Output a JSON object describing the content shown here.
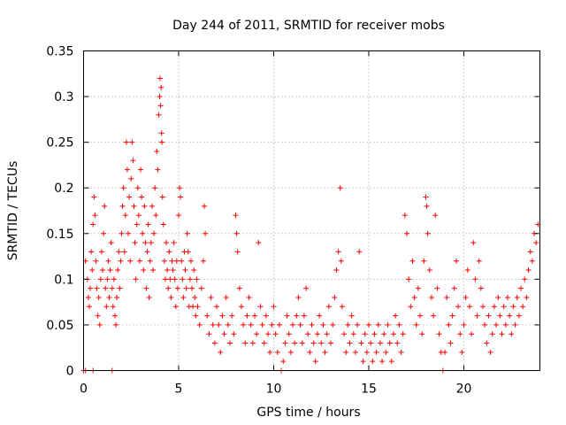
{
  "chart_data": {
    "type": "scatter",
    "title": "Day 244 of 2011, SRMTID for receiver mobs",
    "xlabel": "GPS time / hours",
    "ylabel": "SRMTID / TECUs",
    "xlim": [
      0,
      24
    ],
    "ylim": [
      0,
      0.35
    ],
    "xticks": [
      0,
      5,
      10,
      15,
      20
    ],
    "yticks": [
      0,
      0.05,
      0.1,
      0.15,
      0.2,
      0.25,
      0.3,
      0.35
    ],
    "ytick_labels": [
      "0",
      "0.05",
      "0.1",
      "0.15",
      "0.2",
      "0.25",
      "0.3",
      "0.35"
    ],
    "grid": true,
    "marker": "+",
    "marker_color": "#ff0000",
    "series": [
      {
        "name": "mobs",
        "points": [
          [
            0.0,
            0.0
          ],
          [
            0.1,
            0.0
          ],
          [
            0.5,
            0.0
          ],
          [
            1.5,
            0.0
          ],
          [
            0.1,
            0.12
          ],
          [
            0.2,
            0.1
          ],
          [
            0.25,
            0.08
          ],
          [
            0.3,
            0.07
          ],
          [
            0.35,
            0.09
          ],
          [
            0.4,
            0.13
          ],
          [
            0.45,
            0.11
          ],
          [
            0.5,
            0.16
          ],
          [
            0.55,
            0.19
          ],
          [
            0.6,
            0.17
          ],
          [
            0.65,
            0.12
          ],
          [
            0.7,
            0.09
          ],
          [
            0.75,
            0.06
          ],
          [
            0.8,
            0.08
          ],
          [
            0.85,
            0.05
          ],
          [
            0.9,
            0.1
          ],
          [
            0.95,
            0.13
          ],
          [
            1.0,
            0.11
          ],
          [
            1.05,
            0.15
          ],
          [
            1.1,
            0.18
          ],
          [
            1.15,
            0.09
          ],
          [
            1.2,
            0.07
          ],
          [
            1.25,
            0.1
          ],
          [
            1.3,
            0.12
          ],
          [
            1.35,
            0.08
          ],
          [
            1.4,
            0.11
          ],
          [
            1.45,
            0.14
          ],
          [
            1.5,
            0.09
          ],
          [
            1.55,
            0.07
          ],
          [
            1.6,
            0.1
          ],
          [
            1.65,
            0.06
          ],
          [
            1.7,
            0.05
          ],
          [
            1.75,
            0.08
          ],
          [
            1.8,
            0.11
          ],
          [
            1.85,
            0.13
          ],
          [
            1.9,
            0.09
          ],
          [
            1.95,
            0.12
          ],
          [
            2.0,
            0.15
          ],
          [
            2.05,
            0.18
          ],
          [
            2.1,
            0.2
          ],
          [
            2.15,
            0.13
          ],
          [
            2.2,
            0.17
          ],
          [
            2.25,
            0.25
          ],
          [
            2.3,
            0.22
          ],
          [
            2.35,
            0.15
          ],
          [
            2.4,
            0.19
          ],
          [
            2.45,
            0.12
          ],
          [
            2.5,
            0.21
          ],
          [
            2.55,
            0.25
          ],
          [
            2.6,
            0.23
          ],
          [
            2.65,
            0.18
          ],
          [
            2.7,
            0.14
          ],
          [
            2.75,
            0.1
          ],
          [
            2.8,
            0.16
          ],
          [
            2.85,
            0.2
          ],
          [
            2.9,
            0.17
          ],
          [
            2.95,
            0.12
          ],
          [
            3.0,
            0.22
          ],
          [
            3.05,
            0.19
          ],
          [
            3.1,
            0.15
          ],
          [
            3.15,
            0.11
          ],
          [
            3.2,
            0.18
          ],
          [
            3.25,
            0.14
          ],
          [
            3.3,
            0.09
          ],
          [
            3.35,
            0.13
          ],
          [
            3.4,
            0.16
          ],
          [
            3.45,
            0.08
          ],
          [
            3.5,
            0.12
          ],
          [
            3.55,
            0.14
          ],
          [
            3.6,
            0.18
          ],
          [
            3.65,
            0.11
          ],
          [
            3.7,
            0.15
          ],
          [
            3.75,
            0.2
          ],
          [
            3.8,
            0.17
          ],
          [
            3.85,
            0.24
          ],
          [
            3.9,
            0.22
          ],
          [
            3.95,
            0.28
          ],
          [
            4.0,
            0.3
          ],
          [
            4.02,
            0.32
          ],
          [
            4.05,
            0.29
          ],
          [
            4.08,
            0.31
          ],
          [
            4.1,
            0.26
          ],
          [
            4.12,
            0.25
          ],
          [
            4.15,
            0.19
          ],
          [
            4.2,
            0.16
          ],
          [
            4.25,
            0.12
          ],
          [
            4.3,
            0.1
          ],
          [
            4.35,
            0.14
          ],
          [
            4.4,
            0.11
          ],
          [
            4.45,
            0.09
          ],
          [
            4.5,
            0.13
          ],
          [
            4.55,
            0.1
          ],
          [
            4.6,
            0.08
          ],
          [
            4.65,
            0.12
          ],
          [
            4.7,
            0.11
          ],
          [
            4.75,
            0.14
          ],
          [
            4.8,
            0.1
          ],
          [
            4.85,
            0.07
          ],
          [
            4.9,
            0.12
          ],
          [
            4.95,
            0.09
          ],
          [
            5.0,
            0.17
          ],
          [
            5.05,
            0.2
          ],
          [
            5.1,
            0.19
          ],
          [
            5.15,
            0.12
          ],
          [
            5.2,
            0.1
          ],
          [
            5.25,
            0.08
          ],
          [
            5.3,
            0.13
          ],
          [
            5.35,
            0.11
          ],
          [
            5.4,
            0.09
          ],
          [
            5.45,
            0.15
          ],
          [
            5.5,
            0.13
          ],
          [
            5.55,
            0.07
          ],
          [
            5.6,
            0.1
          ],
          [
            5.65,
            0.12
          ],
          [
            5.7,
            0.09
          ],
          [
            5.75,
            0.07
          ],
          [
            5.8,
            0.11
          ],
          [
            5.85,
            0.08
          ],
          [
            5.9,
            0.06
          ],
          [
            5.95,
            0.1
          ],
          [
            6.0,
            0.07
          ],
          [
            6.1,
            0.05
          ],
          [
            6.2,
            0.09
          ],
          [
            6.3,
            0.12
          ],
          [
            6.35,
            0.18
          ],
          [
            6.4,
            0.15
          ],
          [
            6.5,
            0.06
          ],
          [
            6.6,
            0.04
          ],
          [
            6.7,
            0.08
          ],
          [
            6.8,
            0.05
          ],
          [
            6.9,
            0.03
          ],
          [
            7.0,
            0.07
          ],
          [
            7.1,
            0.05
          ],
          [
            7.2,
            0.02
          ],
          [
            7.3,
            0.06
          ],
          [
            7.4,
            0.04
          ],
          [
            7.5,
            0.08
          ],
          [
            7.6,
            0.05
          ],
          [
            7.7,
            0.03
          ],
          [
            7.8,
            0.06
          ],
          [
            7.9,
            0.04
          ],
          [
            8.0,
            0.17
          ],
          [
            8.05,
            0.15
          ],
          [
            8.1,
            0.13
          ],
          [
            8.2,
            0.09
          ],
          [
            8.3,
            0.07
          ],
          [
            8.4,
            0.05
          ],
          [
            8.5,
            0.03
          ],
          [
            8.6,
            0.06
          ],
          [
            8.7,
            0.08
          ],
          [
            8.8,
            0.05
          ],
          [
            8.9,
            0.03
          ],
          [
            9.0,
            0.06
          ],
          [
            9.1,
            0.04
          ],
          [
            9.2,
            0.14
          ],
          [
            9.3,
            0.07
          ],
          [
            9.4,
            0.05
          ],
          [
            9.5,
            0.03
          ],
          [
            9.6,
            0.06
          ],
          [
            9.7,
            0.04
          ],
          [
            9.8,
            0.02
          ],
          [
            9.9,
            0.05
          ],
          [
            10.0,
            0.07
          ],
          [
            10.1,
            0.04
          ],
          [
            10.2,
            0.02
          ],
          [
            10.3,
            0.05
          ],
          [
            10.4,
            0.0
          ],
          [
            10.5,
            0.01
          ],
          [
            10.6,
            0.03
          ],
          [
            10.7,
            0.06
          ],
          [
            10.8,
            0.04
          ],
          [
            10.9,
            0.02
          ],
          [
            11.0,
            0.05
          ],
          [
            11.1,
            0.03
          ],
          [
            11.2,
            0.06
          ],
          [
            11.3,
            0.08
          ],
          [
            11.4,
            0.05
          ],
          [
            11.5,
            0.03
          ],
          [
            11.6,
            0.06
          ],
          [
            11.7,
            0.09
          ],
          [
            11.8,
            0.04
          ],
          [
            11.9,
            0.02
          ],
          [
            12.0,
            0.05
          ],
          [
            12.1,
            0.03
          ],
          [
            12.2,
            0.01
          ],
          [
            12.3,
            0.04
          ],
          [
            12.4,
            0.06
          ],
          [
            12.5,
            0.03
          ],
          [
            12.6,
            0.05
          ],
          [
            12.7,
            0.02
          ],
          [
            12.8,
            0.04
          ],
          [
            12.9,
            0.07
          ],
          [
            13.0,
            0.03
          ],
          [
            13.1,
            0.05
          ],
          [
            13.2,
            0.08
          ],
          [
            13.3,
            0.11
          ],
          [
            13.4,
            0.13
          ],
          [
            13.5,
            0.2
          ],
          [
            13.55,
            0.12
          ],
          [
            13.6,
            0.07
          ],
          [
            13.7,
            0.04
          ],
          [
            13.8,
            0.02
          ],
          [
            13.9,
            0.05
          ],
          [
            14.0,
            0.03
          ],
          [
            14.1,
            0.06
          ],
          [
            14.2,
            0.04
          ],
          [
            14.3,
            0.02
          ],
          [
            14.4,
            0.05
          ],
          [
            14.5,
            0.13
          ],
          [
            14.6,
            0.03
          ],
          [
            14.7,
            0.01
          ],
          [
            14.8,
            0.04
          ],
          [
            14.9,
            0.02
          ],
          [
            15.0,
            0.05
          ],
          [
            15.1,
            0.03
          ],
          [
            15.2,
            0.01
          ],
          [
            15.3,
            0.04
          ],
          [
            15.4,
            0.02
          ],
          [
            15.5,
            0.05
          ],
          [
            15.6,
            0.03
          ],
          [
            15.7,
            0.01
          ],
          [
            15.8,
            0.04
          ],
          [
            15.9,
            0.02
          ],
          [
            16.0,
            0.05
          ],
          [
            16.1,
            0.03
          ],
          [
            16.2,
            0.01
          ],
          [
            16.3,
            0.04
          ],
          [
            16.4,
            0.06
          ],
          [
            16.5,
            0.03
          ],
          [
            16.6,
            0.05
          ],
          [
            16.7,
            0.02
          ],
          [
            16.8,
            0.04
          ],
          [
            16.9,
            0.17
          ],
          [
            17.0,
            0.15
          ],
          [
            17.1,
            0.1
          ],
          [
            17.2,
            0.07
          ],
          [
            17.3,
            0.12
          ],
          [
            17.4,
            0.08
          ],
          [
            17.5,
            0.05
          ],
          [
            17.6,
            0.09
          ],
          [
            17.7,
            0.06
          ],
          [
            17.8,
            0.04
          ],
          [
            17.9,
            0.12
          ],
          [
            18.0,
            0.19
          ],
          [
            18.05,
            0.18
          ],
          [
            18.1,
            0.15
          ],
          [
            18.2,
            0.11
          ],
          [
            18.3,
            0.08
          ],
          [
            18.4,
            0.06
          ],
          [
            18.5,
            0.17
          ],
          [
            18.6,
            0.09
          ],
          [
            18.7,
            0.04
          ],
          [
            18.8,
            0.02
          ],
          [
            18.9,
            0.0
          ],
          [
            19.0,
            0.02
          ],
          [
            19.1,
            0.08
          ],
          [
            19.2,
            0.05
          ],
          [
            19.3,
            0.03
          ],
          [
            19.4,
            0.06
          ],
          [
            19.5,
            0.09
          ],
          [
            19.6,
            0.12
          ],
          [
            19.7,
            0.07
          ],
          [
            19.8,
            0.04
          ],
          [
            19.9,
            0.02
          ],
          [
            20.0,
            0.05
          ],
          [
            20.1,
            0.08
          ],
          [
            20.2,
            0.11
          ],
          [
            20.3,
            0.07
          ],
          [
            20.4,
            0.04
          ],
          [
            20.5,
            0.14
          ],
          [
            20.6,
            0.1
          ],
          [
            20.7,
            0.06
          ],
          [
            20.8,
            0.12
          ],
          [
            20.9,
            0.09
          ],
          [
            21.0,
            0.07
          ],
          [
            21.1,
            0.05
          ],
          [
            21.2,
            0.03
          ],
          [
            21.3,
            0.06
          ],
          [
            21.4,
            0.02
          ],
          [
            21.5,
            0.04
          ],
          [
            21.6,
            0.07
          ],
          [
            21.7,
            0.05
          ],
          [
            21.8,
            0.08
          ],
          [
            21.9,
            0.06
          ],
          [
            22.0,
            0.04
          ],
          [
            22.1,
            0.07
          ],
          [
            22.2,
            0.05
          ],
          [
            22.3,
            0.08
          ],
          [
            22.4,
            0.06
          ],
          [
            22.5,
            0.04
          ],
          [
            22.6,
            0.07
          ],
          [
            22.7,
            0.05
          ],
          [
            22.8,
            0.08
          ],
          [
            22.9,
            0.06
          ],
          [
            23.0,
            0.09
          ],
          [
            23.1,
            0.07
          ],
          [
            23.2,
            0.1
          ],
          [
            23.3,
            0.08
          ],
          [
            23.4,
            0.11
          ],
          [
            23.5,
            0.13
          ],
          [
            23.6,
            0.12
          ],
          [
            23.7,
            0.15
          ],
          [
            23.8,
            0.14
          ],
          [
            23.9,
            0.16
          ]
        ]
      }
    ]
  }
}
